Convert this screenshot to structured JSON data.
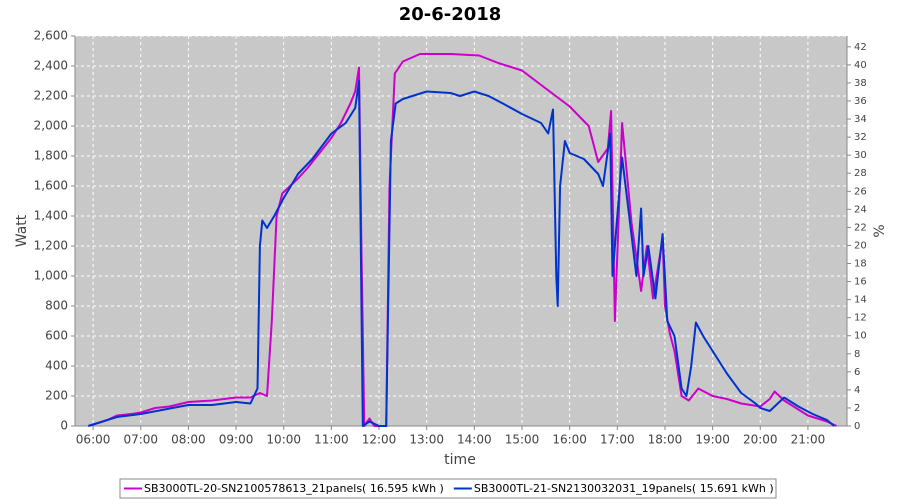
{
  "chart_data": {
    "type": "line",
    "title": "20-6-2018",
    "x_label": "time",
    "y_label": "Watt",
    "y2_label": "%",
    "xlim": [
      5.62,
      21.82
    ],
    "xticks": [
      {
        "value": 6,
        "label": "06:00"
      },
      {
        "value": 7,
        "label": "07:00"
      },
      {
        "value": 8,
        "label": "08:00"
      },
      {
        "value": 9,
        "label": "09:00"
      },
      {
        "value": 10,
        "label": "10:00"
      },
      {
        "value": 11,
        "label": "11:00"
      },
      {
        "value": 12,
        "label": "12:00"
      },
      {
        "value": 13,
        "label": "13:00"
      },
      {
        "value": 14,
        "label": "14:00"
      },
      {
        "value": 15,
        "label": "15:00"
      },
      {
        "value": 16,
        "label": "16:00"
      },
      {
        "value": 17,
        "label": "17:00"
      },
      {
        "value": 18,
        "label": "18:00"
      },
      {
        "value": 19,
        "label": "19:00"
      },
      {
        "value": 20,
        "label": "20:00"
      },
      {
        "value": 21,
        "label": "21:00"
      }
    ],
    "ylim": [
      0,
      2600
    ],
    "yticks": [
      0,
      200,
      400,
      600,
      800,
      1000,
      1200,
      1400,
      1600,
      1800,
      2000,
      2200,
      2400,
      {
        "value": 2600,
        "label": "2,600"
      }
    ],
    "y2lim": [
      0,
      43.2
    ],
    "y2ticks": [
      0,
      2,
      4,
      6,
      8,
      10,
      12,
      14,
      16,
      18,
      20,
      22,
      24,
      26,
      28,
      30,
      32,
      34,
      36,
      38,
      40,
      42
    ],
    "grid": true,
    "legend": "bottom",
    "series": [
      {
        "name": "SB3000TL-20-SN2100578613_21panels( 16.595 kWh )",
        "color": "#cc00cc",
        "x": [
          5.9,
          6.1,
          6.3,
          6.5,
          6.8,
          7.0,
          7.3,
          7.6,
          8.0,
          8.5,
          9.0,
          9.3,
          9.5,
          9.65,
          9.75,
          9.85,
          9.97,
          10.3,
          10.5,
          10.7,
          11.0,
          11.2,
          11.4,
          11.5,
          11.58,
          11.63,
          11.69,
          11.8,
          11.9,
          12.15,
          12.22,
          12.33,
          12.5,
          12.86,
          13.5,
          14.1,
          14.5,
          15.0,
          15.5,
          16.0,
          16.4,
          16.6,
          16.8,
          16.87,
          16.95,
          17.1,
          17.3,
          17.5,
          17.62,
          17.75,
          17.85,
          17.95,
          18.0,
          18.1,
          18.2,
          18.35,
          18.5,
          18.7,
          19.0,
          19.3,
          19.6,
          20.0,
          20.2,
          20.3,
          20.5,
          20.8,
          21.0,
          21.4,
          21.6
        ],
        "values": [
          0,
          20,
          40,
          70,
          80,
          90,
          120,
          130,
          160,
          170,
          190,
          190,
          220,
          200,
          700,
          1400,
          1550,
          1650,
          1720,
          1800,
          1920,
          2020,
          2150,
          2230,
          2390,
          1200,
          0,
          50,
          0,
          0,
          1600,
          2350,
          2430,
          2480,
          2480,
          2470,
          2420,
          2370,
          2250,
          2130,
          2000,
          1760,
          1850,
          2100,
          700,
          2020,
          1350,
          900,
          1200,
          850,
          1050,
          1250,
          800,
          620,
          500,
          200,
          170,
          250,
          200,
          180,
          150,
          130,
          180,
          230,
          170,
          110,
          70,
          30,
          0
        ]
      },
      {
        "name": "SB3000TL-21-SN2130032031_19panels( 15.691 kWh )",
        "color": "#0033cc",
        "x": [
          5.9,
          6.2,
          6.5,
          7.0,
          7.5,
          8.0,
          8.5,
          9.0,
          9.3,
          9.45,
          9.5,
          9.55,
          9.65,
          9.8,
          10.0,
          10.3,
          10.6,
          11.0,
          11.3,
          11.5,
          11.58,
          11.66,
          11.8,
          12.0,
          12.15,
          12.25,
          12.35,
          12.5,
          13.0,
          13.5,
          13.7,
          14.0,
          14.3,
          14.6,
          15.0,
          15.4,
          15.55,
          15.65,
          15.72,
          15.75,
          15.8,
          15.9,
          16.0,
          16.3,
          16.6,
          16.7,
          16.85,
          16.9,
          17.0,
          17.1,
          17.25,
          17.4,
          17.5,
          17.55,
          17.65,
          17.8,
          17.95,
          18.05,
          18.2,
          18.35,
          18.45,
          18.55,
          18.65,
          18.8,
          19.0,
          19.3,
          19.6,
          19.9,
          20.0,
          20.2,
          20.5,
          20.8,
          21.1,
          21.4,
          21.55
        ],
        "values": [
          0,
          30,
          60,
          80,
          110,
          140,
          140,
          160,
          150,
          250,
          1200,
          1370,
          1320,
          1400,
          1520,
          1680,
          1780,
          1950,
          2020,
          2120,
          2300,
          0,
          30,
          0,
          0,
          1900,
          2150,
          2180,
          2230,
          2220,
          2200,
          2230,
          2200,
          2150,
          2080,
          2020,
          1950,
          2110,
          1000,
          800,
          1600,
          1900,
          1820,
          1780,
          1680,
          1600,
          1950,
          1000,
          1400,
          1790,
          1400,
          1000,
          1450,
          1000,
          1200,
          850,
          1280,
          700,
          600,
          250,
          200,
          400,
          690,
          600,
          500,
          350,
          220,
          150,
          120,
          100,
          190,
          130,
          80,
          40,
          0
        ]
      }
    ]
  }
}
